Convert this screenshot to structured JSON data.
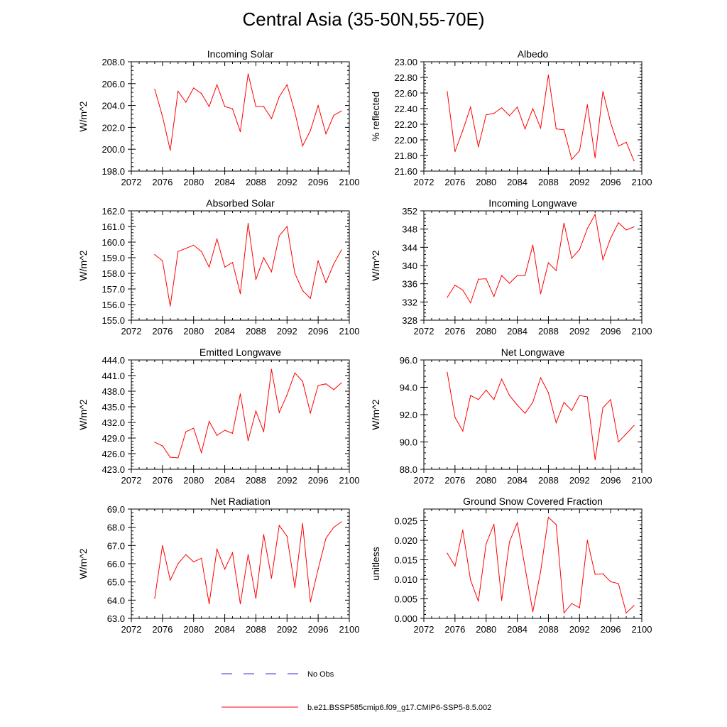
{
  "title": "Central Asia (35-50N,55-70E)",
  "colors": {
    "model": "#ff0000",
    "obs": "#3333cc",
    "axis": "#000000",
    "background": "#ffffff"
  },
  "legend": [
    {
      "label": "No Obs",
      "style": "dashed",
      "color": "#3333cc"
    },
    {
      "label": "b.e21.BSSP585cmip6.f09_g17.CMIP6-SSP5-8.5.002",
      "style": "solid",
      "color": "#ff0000"
    }
  ],
  "x": [
    2075,
    2076,
    2077,
    2078,
    2079,
    2080,
    2081,
    2082,
    2083,
    2084,
    2085,
    2086,
    2087,
    2088,
    2089,
    2090,
    2091,
    2092,
    2093,
    2094,
    2095,
    2096,
    2097,
    2098,
    2099
  ],
  "chart_data": [
    {
      "type": "line",
      "title": "Incoming Solar",
      "ylabel": "W/m^2",
      "xlim": [
        2072,
        2100
      ],
      "ylim": [
        198,
        208
      ],
      "xticks": [
        "2072",
        "2076",
        "2080",
        "2084",
        "2088",
        "2092",
        "2096",
        "2100"
      ],
      "yticks": [
        "198.0",
        "200.0",
        "202.0",
        "204.0",
        "206.0",
        "208.0"
      ],
      "values": [
        205.5,
        203.0,
        199.9,
        205.3,
        204.3,
        205.6,
        205.1,
        203.9,
        205.9,
        203.9,
        203.7,
        201.6,
        206.9,
        203.9,
        203.9,
        202.8,
        204.8,
        205.9,
        203.4,
        200.3,
        201.7,
        204.0,
        201.4,
        203.1,
        203.5
      ]
    },
    {
      "type": "line",
      "title": "Albedo",
      "ylabel": "% reflected",
      "xlim": [
        2072,
        2100
      ],
      "ylim": [
        21.6,
        23.0
      ],
      "xticks": [
        "2072",
        "2076",
        "2080",
        "2084",
        "2088",
        "2092",
        "2096",
        "2100"
      ],
      "yticks": [
        "21.60",
        "21.80",
        "22.00",
        "22.20",
        "22.40",
        "22.60",
        "22.80",
        "23.00"
      ],
      "values": [
        22.62,
        21.85,
        22.12,
        22.42,
        21.91,
        22.32,
        22.34,
        22.41,
        22.31,
        22.42,
        22.14,
        22.4,
        22.15,
        22.83,
        22.14,
        22.13,
        21.75,
        21.86,
        22.45,
        21.77,
        22.62,
        22.22,
        21.92,
        21.97,
        21.73
      ]
    },
    {
      "type": "line",
      "title": "Absorbed Solar",
      "ylabel": "W/m^2",
      "xlim": [
        2072,
        2100
      ],
      "ylim": [
        155,
        162
      ],
      "xticks": [
        "2072",
        "2076",
        "2080",
        "2084",
        "2088",
        "2092",
        "2096",
        "2100"
      ],
      "yticks": [
        "155.0",
        "156.0",
        "157.0",
        "158.0",
        "159.0",
        "160.0",
        "161.0",
        "162.0"
      ],
      "values": [
        159.2,
        158.8,
        155.9,
        159.4,
        159.6,
        159.8,
        159.4,
        158.4,
        160.2,
        158.4,
        158.7,
        156.7,
        161.2,
        157.6,
        159.0,
        158.1,
        160.4,
        161.0,
        158.0,
        156.9,
        156.4,
        158.8,
        157.4,
        158.6,
        159.5
      ]
    },
    {
      "type": "line",
      "title": "Incoming Longwave",
      "ylabel": "W/m^2",
      "xlim": [
        2072,
        2100
      ],
      "ylim": [
        328,
        352
      ],
      "xticks": [
        "2072",
        "2076",
        "2080",
        "2084",
        "2088",
        "2092",
        "2096",
        "2100"
      ],
      "yticks": [
        "328",
        "332",
        "336",
        "340",
        "344",
        "348",
        "352"
      ],
      "values": [
        333.0,
        335.7,
        334.6,
        331.8,
        337.0,
        337.1,
        333.2,
        337.8,
        336.1,
        337.8,
        337.8,
        344.5,
        333.8,
        340.6,
        338.9,
        349.3,
        341.6,
        343.5,
        348.1,
        351.2,
        341.3,
        346.0,
        349.4,
        347.8,
        348.5
      ]
    },
    {
      "type": "line",
      "title": "Emitted Longwave",
      "ylabel": "W/m^2",
      "xlim": [
        2072,
        2100
      ],
      "ylim": [
        423,
        444
      ],
      "xticks": [
        "2072",
        "2076",
        "2080",
        "2084",
        "2088",
        "2092",
        "2096",
        "2100"
      ],
      "yticks": [
        "423.0",
        "426.0",
        "429.0",
        "432.0",
        "435.0",
        "438.0",
        "441.0",
        "444.0"
      ],
      "values": [
        428.2,
        427.5,
        425.3,
        425.2,
        430.2,
        430.9,
        426.2,
        432.2,
        429.5,
        430.5,
        429.9,
        437.5,
        428.5,
        434.2,
        430.2,
        442.2,
        433.9,
        437.3,
        441.5,
        439.9,
        433.8,
        439.1,
        439.4,
        438.3,
        439.6
      ]
    },
    {
      "type": "line",
      "title": "Net Longwave",
      "ylabel": "W/m^2",
      "xlim": [
        2072,
        2100
      ],
      "ylim": [
        88,
        96
      ],
      "xticks": [
        "2072",
        "2076",
        "2080",
        "2084",
        "2088",
        "2092",
        "2096",
        "2100"
      ],
      "yticks": [
        "88.0",
        "90.0",
        "92.0",
        "94.0",
        "96.0"
      ],
      "values": [
        95.1,
        91.8,
        90.8,
        93.4,
        93.1,
        93.8,
        93.1,
        94.6,
        93.4,
        92.7,
        92.1,
        92.9,
        94.7,
        93.6,
        91.4,
        92.9,
        92.3,
        93.4,
        93.3,
        88.7,
        92.5,
        93.1,
        90.0,
        90.6,
        91.2
      ]
    },
    {
      "type": "line",
      "title": "Net Radiation",
      "ylabel": "W/m^2",
      "xlim": [
        2072,
        2100
      ],
      "ylim": [
        63,
        69
      ],
      "xticks": [
        "2072",
        "2076",
        "2080",
        "2084",
        "2088",
        "2092",
        "2096",
        "2100"
      ],
      "yticks": [
        "63.0",
        "64.0",
        "65.0",
        "66.0",
        "67.0",
        "68.0",
        "69.0"
      ],
      "values": [
        64.1,
        67.0,
        65.1,
        66.0,
        66.5,
        66.1,
        66.3,
        63.8,
        66.8,
        65.7,
        66.6,
        63.8,
        66.5,
        64.1,
        67.6,
        65.2,
        68.1,
        67.5,
        64.7,
        68.2,
        63.9,
        65.7,
        67.4,
        68.0,
        68.3
      ]
    },
    {
      "type": "line",
      "title": "Ground Snow Covered Fraction",
      "ylabel": "unitless",
      "xlim": [
        2072,
        2100
      ],
      "ylim": [
        0,
        0.028
      ],
      "xticks": [
        "2072",
        "2076",
        "2080",
        "2084",
        "2088",
        "2092",
        "2096",
        "2100"
      ],
      "yticks": [
        "0.000",
        "0.005",
        "0.010",
        "0.015",
        "0.020",
        "0.025"
      ],
      "values": [
        0.0167,
        0.0134,
        0.0226,
        0.0098,
        0.0044,
        0.0191,
        0.0241,
        0.0046,
        0.0196,
        0.0245,
        0.0131,
        0.0017,
        0.012,
        0.0259,
        0.024,
        0.0014,
        0.0038,
        0.0027,
        0.02,
        0.0113,
        0.0114,
        0.0094,
        0.0089,
        0.0014,
        0.0033
      ]
    }
  ]
}
